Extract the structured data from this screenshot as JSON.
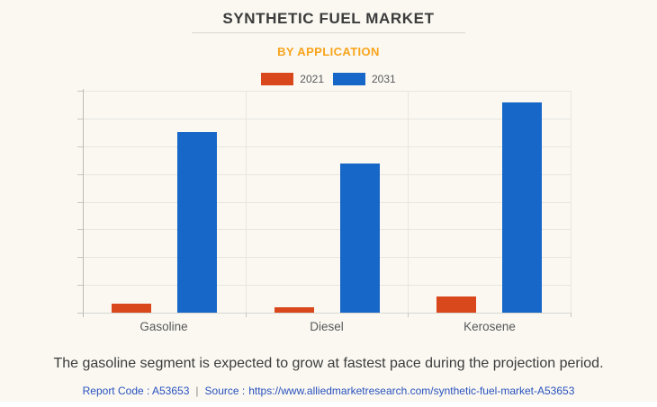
{
  "header": {
    "title": "SYNTHETIC FUEL MARKET",
    "subtitle": "BY APPLICATION"
  },
  "chart_data": {
    "type": "bar",
    "title": "SYNTHETIC FUEL MARKET",
    "subtitle": "BY APPLICATION",
    "categories": [
      "Gasoline",
      "Diesel",
      "Kerosene"
    ],
    "series": [
      {
        "name": "2021",
        "color": "#D9481C",
        "values": [
          3.9,
          2.6,
          7.1
        ]
      },
      {
        "name": "2031",
        "color": "#1767C8",
        "values": [
          81.4,
          67.3,
          94.6
        ]
      }
    ],
    "xlabel": "",
    "ylabel": "",
    "ylim": [
      0,
      100
    ],
    "y_axis_numeric_labels": false,
    "grid": true,
    "grid_y_divisions": 8,
    "grid_x_divisions": 3,
    "legend_position": "top"
  },
  "footer": {
    "annotation": "The gasoline segment is expected to grow at fastest pace during the projection period.",
    "report_code": "Report Code : A53653",
    "separator": "|",
    "source_label": "Source :",
    "source_url": "https://www.alliedmarketresearch.com/synthetic-fuel-market-A53653"
  },
  "colors": {
    "background": "#FAF8F1",
    "bar_2021": "#D9481C",
    "bar_2031": "#1767C8",
    "subtitle_accent": "#F9A41D",
    "link": "#2A52BE"
  }
}
